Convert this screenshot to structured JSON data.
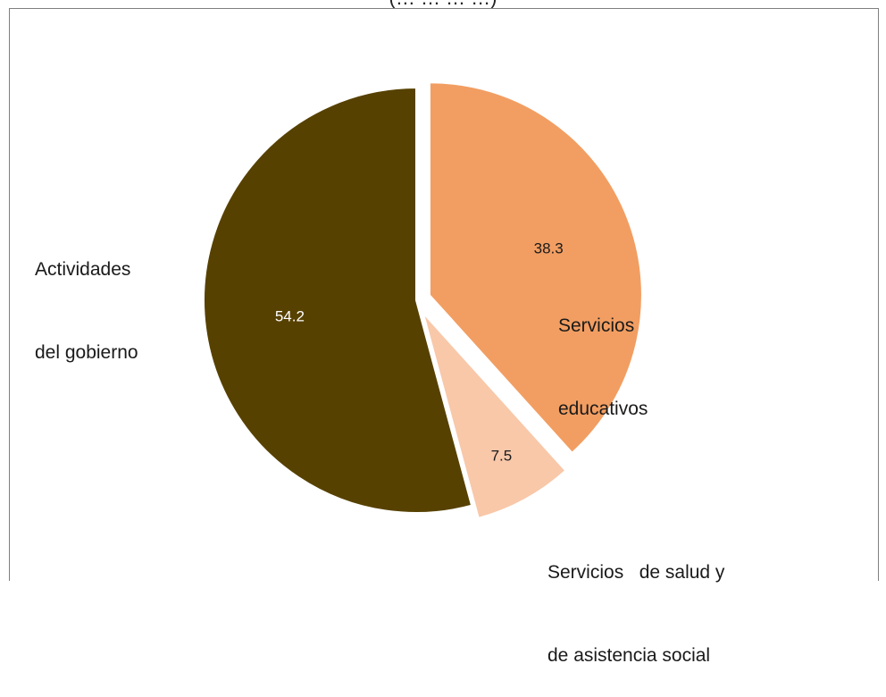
{
  "chart_data": {
    "type": "pie",
    "title": "(… … … …)",
    "start_angle_deg": 0,
    "direction": "clockwise",
    "slices": [
      {
        "label_lines": [
          "Servicios",
          "educativos"
        ],
        "value": 38.3,
        "value_label": "38.3",
        "color": "#f29e62",
        "value_label_color": "#1a1a1a",
        "exploded": true
      },
      {
        "label_lines": [
          "Servicios   de salud y",
          "de asistencia social"
        ],
        "value": 7.5,
        "value_label": "7.5",
        "color": "#f8c8a9",
        "value_label_color": "#1a1a1a",
        "exploded": true
      },
      {
        "label_lines": [
          "Actividades",
          "del gobierno"
        ],
        "value": 54.2,
        "value_label": "54.2",
        "color": "#574100",
        "value_label_color": "#ffffff",
        "exploded": false
      }
    ],
    "legend": "none"
  }
}
